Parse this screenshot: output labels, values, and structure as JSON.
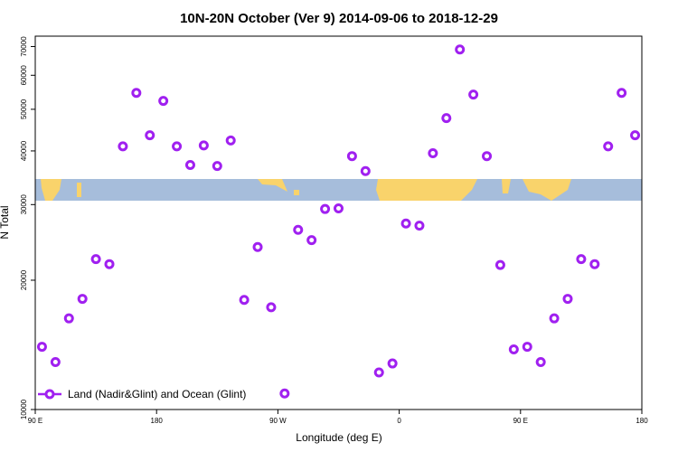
{
  "chart_data": {
    "type": "scatter",
    "title": "10N-20N October (Ver 9)   2014-09-06 to 2018-12-29",
    "xlabel": "Longitude (deg E)",
    "ylabel": "N Total",
    "xlim": [
      90,
      540
    ],
    "xticks": [
      {
        "value": 90,
        "label": "90 E"
      },
      {
        "value": 180,
        "label": "180"
      },
      {
        "value": 270,
        "label": "90 W"
      },
      {
        "value": 360,
        "label": "0"
      },
      {
        "value": 450,
        "label": "90 E"
      },
      {
        "value": 540,
        "label": "180"
      }
    ],
    "ylim": [
      10000,
      74000
    ],
    "yscale": "log",
    "yticks": [
      10000,
      20000,
      30000,
      40000,
      50000,
      60000,
      70000
    ],
    "legend": "bottom-left",
    "series": [
      {
        "name": "Land (Nadir&Glint) and Ocean (Glint)",
        "color": "#a020f0",
        "x": [
          95,
          105,
          115,
          125,
          135,
          145,
          155,
          165,
          175,
          185,
          195,
          205,
          215,
          225,
          235,
          245,
          255,
          265,
          275,
          285,
          295,
          305,
          315,
          325,
          335,
          345,
          355,
          365,
          375,
          385,
          395,
          405,
          415,
          425,
          435,
          445,
          455,
          465,
          475,
          485,
          495,
          505,
          515,
          525,
          535
        ],
        "values": [
          14000,
          12900,
          16300,
          18100,
          22400,
          21800,
          41000,
          54600,
          43500,
          52300,
          41000,
          37100,
          41200,
          36900,
          42300,
          18000,
          23900,
          17300,
          10900,
          26200,
          24800,
          29300,
          29400,
          38900,
          35900,
          12200,
          12800,
          27100,
          26800,
          39500,
          47700,
          68900,
          54100,
          38900,
          21700,
          13800,
          14000,
          12900,
          16300,
          18100,
          22400,
          21800,
          41000,
          54600,
          43500
        ]
      }
    ]
  }
}
